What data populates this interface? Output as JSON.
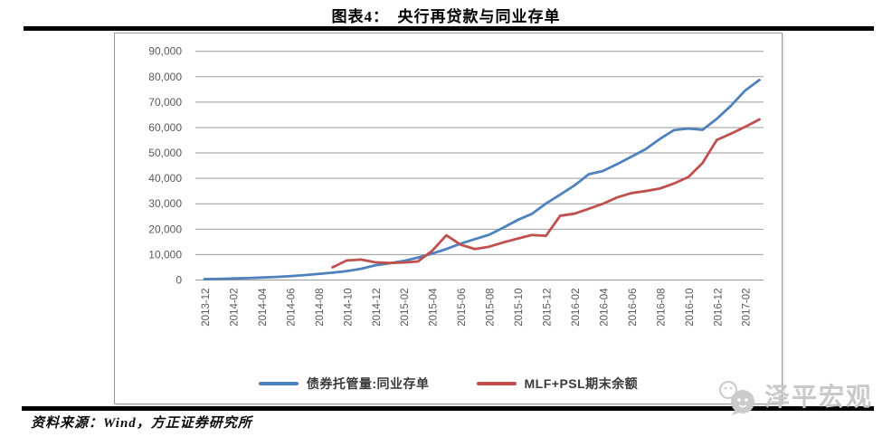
{
  "header": {
    "title": "图表4：　央行再贷款与同业存单"
  },
  "footer": {
    "source": "资料来源：Wind，方正证券研究所"
  },
  "watermark": {
    "brand": "泽平宏观"
  },
  "chart_data": {
    "type": "line",
    "title": "央行再贷款与同业存单",
    "xlabel": "",
    "ylabel": "",
    "x": [
      "2013-12",
      "2014-01",
      "2014-02",
      "2014-03",
      "2014-04",
      "2014-05",
      "2014-06",
      "2014-07",
      "2014-08",
      "2014-09",
      "2014-10",
      "2014-11",
      "2014-12",
      "2015-01",
      "2015-02",
      "2015-03",
      "2015-04",
      "2015-05",
      "2015-06",
      "2015-07",
      "2015-08",
      "2015-09",
      "2015-10",
      "2015-11",
      "2015-12",
      "2016-01",
      "2016-02",
      "2016-03",
      "2016-04",
      "2016-05",
      "2016-06",
      "2016-07",
      "2016-08",
      "2016-09",
      "2016-10",
      "2016-11",
      "2016-12",
      "2017-01",
      "2017-02",
      "2017-03"
    ],
    "x_tick_labels": [
      "2013-12",
      "2014-02",
      "2014-04",
      "2014-06",
      "2014-08",
      "2014-10",
      "2014-12",
      "2015-02",
      "2015-04",
      "2015-06",
      "2015-08",
      "2015-10",
      "2015-12",
      "2016-02",
      "2016-04",
      "2016-06",
      "2016-08",
      "2016-10",
      "2016-12",
      "2017-02"
    ],
    "x_labels_every": 2,
    "y_ticks": [
      0,
      10000,
      20000,
      30000,
      40000,
      50000,
      60000,
      70000,
      80000,
      90000
    ],
    "ylim": [
      0,
      90000
    ],
    "grid": true,
    "grid_color": "#9b9b9b",
    "axis_label_color": "#595959",
    "legend_position": "bottom",
    "series": [
      {
        "name": "债券托管量:同业存单",
        "color": "#4F81BD",
        "values": [
          340,
          450,
          600,
          750,
          950,
          1200,
          1500,
          1900,
          2400,
          2900,
          3500,
          4400,
          5800,
          6600,
          7500,
          8800,
          10400,
          12200,
          14300,
          16100,
          17800,
          20600,
          23600,
          26000,
          30100,
          33600,
          37200,
          41600,
          42900,
          45600,
          48500,
          51500,
          55500,
          59000,
          59600,
          59100,
          63400,
          68600,
          74600,
          78700
        ]
      },
      {
        "name": "MLF+PSL期末余额",
        "color": "#C0504D",
        "values": [
          null,
          null,
          null,
          null,
          null,
          null,
          null,
          null,
          null,
          5000,
          7700,
          8050,
          7000,
          6700,
          6900,
          7300,
          11500,
          17600,
          13900,
          12200,
          13100,
          14800,
          16300,
          17700,
          17400,
          25300,
          26100,
          28000,
          30000,
          32500,
          34200,
          35000,
          36000,
          38000,
          40500,
          46000,
          55100,
          57600,
          60300,
          63200
        ]
      }
    ]
  }
}
